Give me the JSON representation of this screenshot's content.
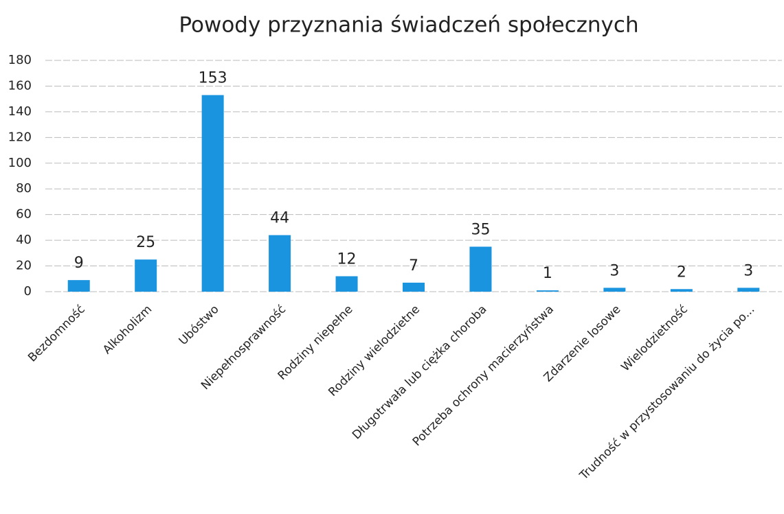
{
  "chart_data": {
    "type": "bar",
    "title": "Powody przyznania świadczeń społecznych",
    "categories": [
      "Bezdomność",
      "Alkoholizm",
      "Ubóstwo",
      "Niepełnosprawność",
      "Rodziny niepełne",
      "Rodziny wielodzietne",
      "Długotrwała lub ciężka choroba",
      "Potrzeba ochrony macierzyństwa",
      "Zdarzenie losowe",
      "Wielodzietność",
      "Trudność w przystosowaniu do życia po..."
    ],
    "values": [
      9,
      25,
      153,
      44,
      12,
      7,
      35,
      1,
      3,
      2,
      3
    ],
    "color": "#1b94e0",
    "ylim": [
      0,
      180
    ],
    "yticks": [
      0,
      20,
      40,
      60,
      80,
      100,
      120,
      140,
      160,
      180
    ],
    "grid": true
  }
}
